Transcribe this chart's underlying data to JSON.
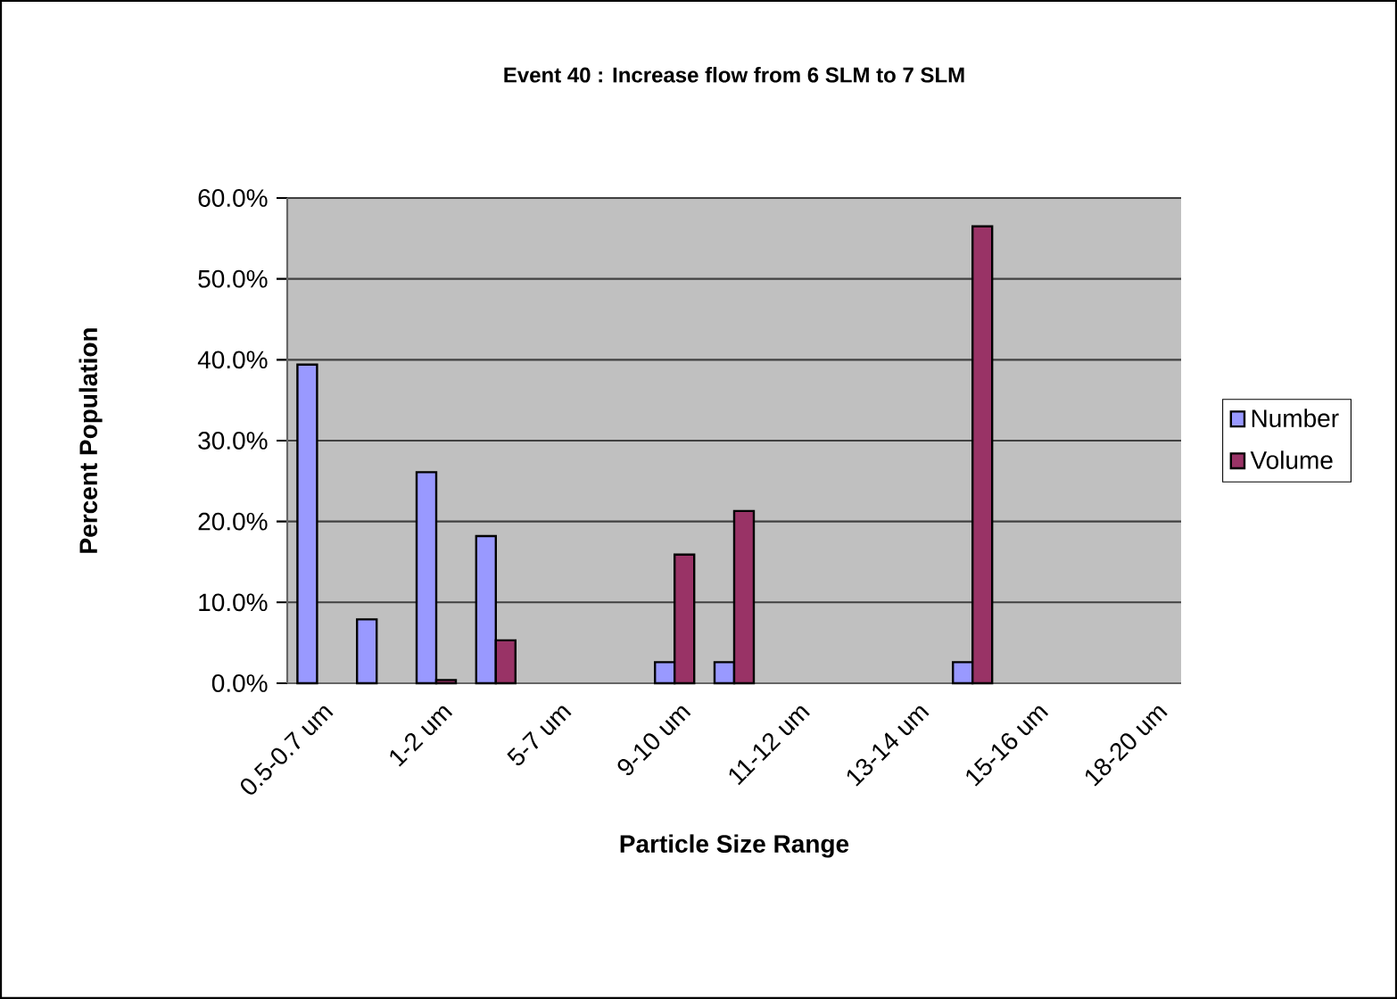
{
  "chart_data": {
    "type": "bar",
    "title": "Event 40 : Increase flow from 6 SLM to 7 SLM",
    "xlabel": "Particle Size Range",
    "ylabel": "Percent Population",
    "categories": [
      "0.5-0.7 um",
      null,
      "1-2 um",
      null,
      "5-7 um",
      null,
      "9-10 um",
      null,
      "11-12 um",
      null,
      "13-14 um",
      null,
      "15-16 um",
      null,
      "18-20 um"
    ],
    "series": [
      {
        "name": "Number",
        "color": "#9999ff",
        "values": [
          39.4,
          7.9,
          26.1,
          18.2,
          0,
          0,
          2.6,
          2.6,
          0,
          0,
          0,
          2.6,
          0,
          0,
          0
        ]
      },
      {
        "name": "Volume",
        "color": "#993366",
        "values": [
          0,
          0,
          0.4,
          5.3,
          0,
          0,
          15.9,
          21.3,
          0,
          0,
          0,
          56.5,
          0,
          0,
          0
        ]
      }
    ],
    "ylim": [
      0,
      60
    ],
    "yticks": [
      {
        "value": 0,
        "label": "0.0%"
      },
      {
        "value": 10,
        "label": "10.0%"
      },
      {
        "value": 20,
        "label": "20.0%"
      },
      {
        "value": 30,
        "label": "30.0%"
      },
      {
        "value": 40,
        "label": "40.0%"
      },
      {
        "value": 50,
        "label": "50.0%"
      },
      {
        "value": 60,
        "label": "60.0%"
      }
    ],
    "grid": "y",
    "legend": "right"
  }
}
